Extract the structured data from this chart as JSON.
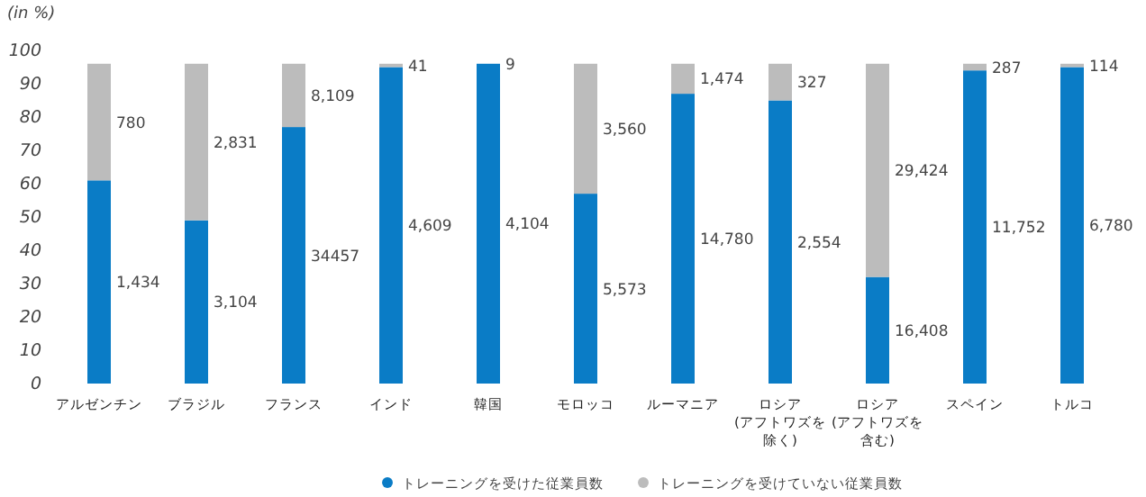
{
  "chart_data": {
    "type": "bar",
    "stacked": true,
    "ylabel": "(in %)",
    "categories": [
      "アルゼンチン",
      "ブラジル",
      "フランス",
      "インド",
      "韓国",
      "モロッコ",
      "ルーマニア",
      "ロシア(アフトワズを除く)",
      "ロシア(アフトワズを含む)",
      "スペイン",
      "トルコ"
    ],
    "series": [
      {
        "name": "トレーニングを受けた従業員数",
        "color": "#0a7cc6",
        "values": [
          61,
          49,
          77,
          95,
          96,
          57,
          87,
          85,
          32,
          94,
          95
        ]
      },
      {
        "name": "トレーニングを受けていない従業員数",
        "color": "#bcbcbc",
        "values": [
          35,
          47,
          19,
          1,
          0,
          39,
          9,
          11,
          64,
          2,
          1
        ]
      }
    ],
    "annotations": [
      "1,434",
      "780",
      "3,104",
      "2,831",
      "34457",
      "8,109",
      "4,609",
      "41",
      "4,104",
      "9",
      "5,573",
      "3,560",
      "14,780",
      "1,474",
      "2,554",
      "327",
      "16,408",
      "29,424",
      "11,752",
      "287",
      "6,780",
      "114"
    ],
    "ylim": [
      0,
      100
    ],
    "yticks": [
      0,
      10,
      20,
      30,
      40,
      50,
      60,
      70,
      80,
      90,
      100
    ],
    "grid": false,
    "legend": "bottom",
    "marker": "circle"
  }
}
